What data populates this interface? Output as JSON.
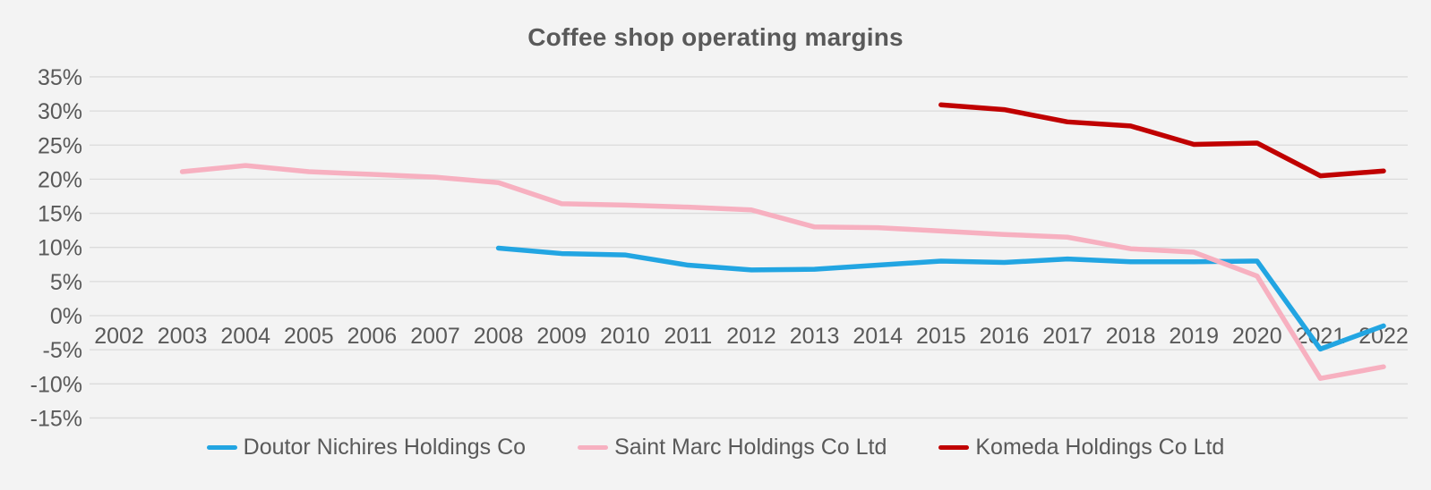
{
  "title": "Coffee shop operating margins",
  "colors": {
    "background": "#f3f3f3",
    "gridline": "#dbdbdb",
    "text": "#595959",
    "doutor_blue": "#22a5e2",
    "saint_marc_pink": "#f7b0c0",
    "komeda_red": "#c00000"
  },
  "chart_data": {
    "type": "line",
    "title": "Coffee shop operating margins",
    "xlabel": "",
    "ylabel": "",
    "grid": "horizontal",
    "legend_position": "bottom",
    "xlim": [
      2002,
      2022
    ],
    "ylim": [
      -15,
      35
    ],
    "x_ticks": [
      2002,
      2003,
      2004,
      2005,
      2006,
      2007,
      2008,
      2009,
      2010,
      2011,
      2012,
      2013,
      2014,
      2015,
      2016,
      2017,
      2018,
      2019,
      2020,
      2021,
      2022
    ],
    "x_tick_labels": [
      "2002",
      "2003",
      "2004",
      "2005",
      "2006",
      "2007",
      "2008",
      "2009",
      "2010",
      "2011",
      "2012",
      "2013",
      "2014",
      "2015",
      "2016",
      "2017",
      "2018",
      "2019",
      "2020",
      "2021",
      "2022"
    ],
    "y_ticks": [
      35,
      30,
      25,
      20,
      15,
      10,
      5,
      0,
      -5,
      -10,
      -15
    ],
    "y_tick_labels": [
      "35%",
      "30%",
      "25%",
      "20%",
      "15%",
      "10%",
      "5%",
      "0%",
      "-5%",
      "-10%",
      "-15%"
    ],
    "y_unit": "%",
    "series": [
      {
        "name": "Doutor Nichires Holdings Co",
        "color": "#22a5e2",
        "points": [
          [
            2008,
            9.9
          ],
          [
            2009,
            9.1
          ],
          [
            2010,
            8.9
          ],
          [
            2011,
            7.4
          ],
          [
            2012,
            6.7
          ],
          [
            2013,
            6.8
          ],
          [
            2014,
            7.4
          ],
          [
            2015,
            8.0
          ],
          [
            2016,
            7.8
          ],
          [
            2017,
            8.3
          ],
          [
            2018,
            7.9
          ],
          [
            2019,
            7.9
          ],
          [
            2020,
            8.0
          ],
          [
            2021,
            -4.9
          ],
          [
            2022,
            -1.5
          ]
        ]
      },
      {
        "name": "Saint Marc Holdings Co Ltd",
        "color": "#f7b0c0",
        "points": [
          [
            2003,
            21.1
          ],
          [
            2004,
            22.0
          ],
          [
            2005,
            21.1
          ],
          [
            2006,
            20.7
          ],
          [
            2007,
            20.3
          ],
          [
            2008,
            19.5
          ],
          [
            2009,
            16.4
          ],
          [
            2010,
            16.2
          ],
          [
            2011,
            15.9
          ],
          [
            2012,
            15.5
          ],
          [
            2013,
            13.0
          ],
          [
            2014,
            12.9
          ],
          [
            2015,
            12.4
          ],
          [
            2016,
            11.9
          ],
          [
            2017,
            11.5
          ],
          [
            2018,
            9.8
          ],
          [
            2019,
            9.3
          ],
          [
            2020,
            5.8
          ],
          [
            2021,
            -9.2
          ],
          [
            2022,
            -7.5
          ]
        ]
      },
      {
        "name": "Komeda Holdings Co Ltd",
        "color": "#c00000",
        "points": [
          [
            2015,
            30.9
          ],
          [
            2016,
            30.2
          ],
          [
            2017,
            28.4
          ],
          [
            2018,
            27.8
          ],
          [
            2019,
            25.1
          ],
          [
            2020,
            25.3
          ],
          [
            2021,
            20.5
          ],
          [
            2022,
            21.2
          ]
        ]
      }
    ]
  }
}
